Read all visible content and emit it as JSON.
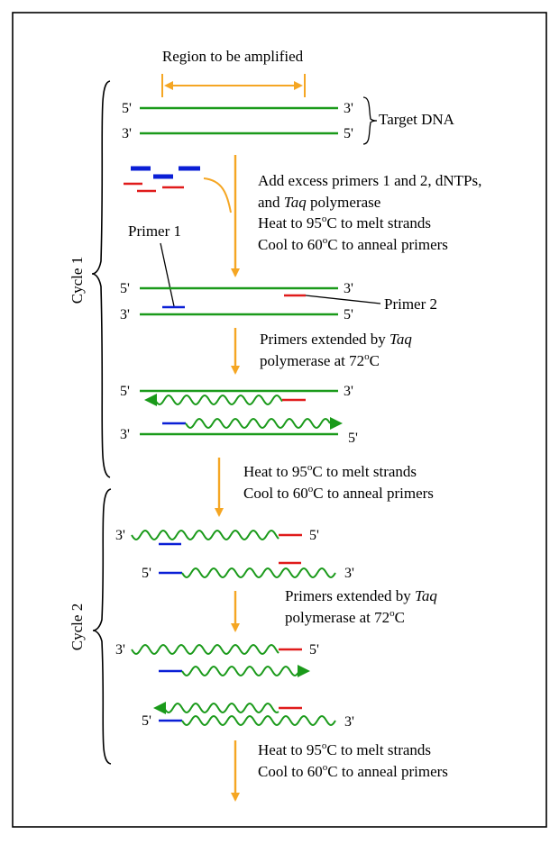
{
  "colors": {
    "dna": "#1a9a1a",
    "primer1": "#0a1fd6",
    "primer2": "#e01b1b",
    "arrow": "#f5a623",
    "frame": "#000000"
  },
  "title": "Region to be amplified",
  "target_label": "Target DNA",
  "primer1_label": "Primer 1",
  "primer2_label": "Primer 2",
  "cycle1": "Cycle 1",
  "cycle2": "Cycle 2",
  "ends": {
    "five": "5'",
    "three": "3'"
  },
  "step1": {
    "line1": "Add excess primers 1 and 2, dNTPs,",
    "line2_pre": "and ",
    "line2_em": "Taq",
    "line2_post": " polymerase",
    "line3_pre": "Heat to 95",
    "line3_sup": "o",
    "line3_post": "C to melt strands",
    "line4_pre": "Cool to 60",
    "line4_sup": "o",
    "line4_post": "C to anneal primers"
  },
  "extend": {
    "line1_pre": "Primers extended by ",
    "line1_em": "Taq",
    "line2_pre": "polymerase at 72",
    "line2_sup": "o",
    "line2_post": "C"
  },
  "heat": {
    "line1_pre": "Heat to 95",
    "line1_sup": "o",
    "line1_post": "C to melt strands",
    "line2_pre": "Cool to 60",
    "line2_sup": "o",
    "line2_post": "C to anneal primers"
  }
}
